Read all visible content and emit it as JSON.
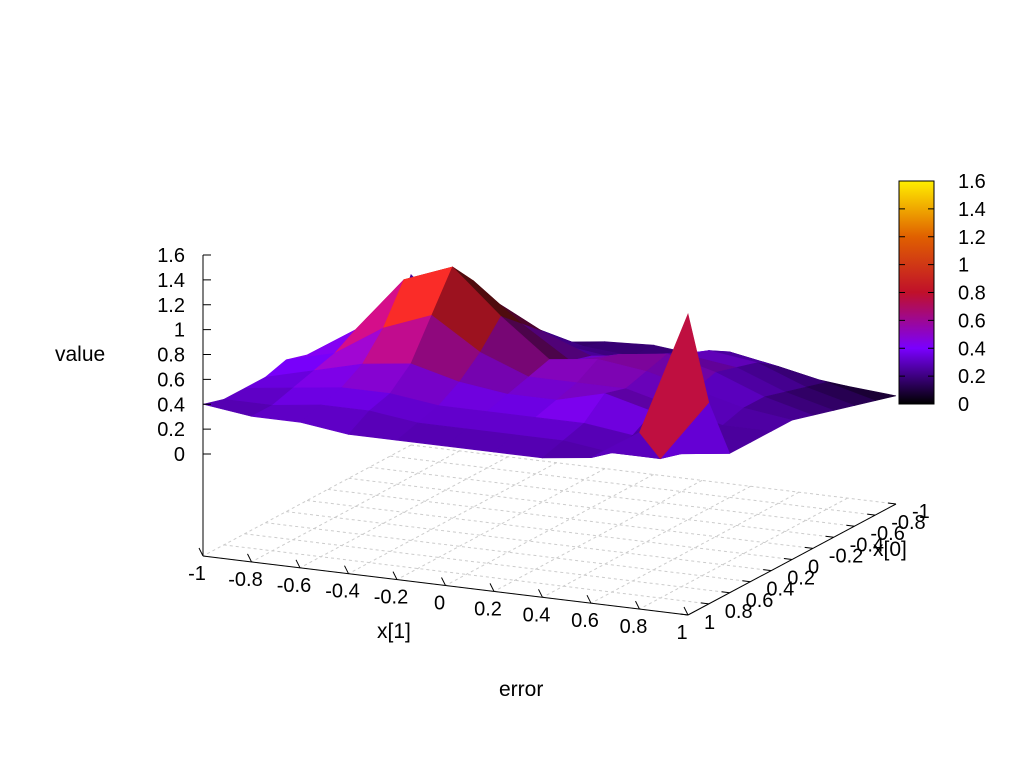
{
  "chart_data": {
    "type": "surface3d",
    "title": "error",
    "xlabel": "x[1]",
    "ylabel": "x[0]",
    "zlabel": "value",
    "xlim": [
      -1,
      1
    ],
    "ylim": [
      -1,
      1
    ],
    "zlim": [
      0,
      1.6
    ],
    "x_ticks": [
      "-1",
      "-0.8",
      "-0.6",
      "-0.4",
      "-0.2",
      "0",
      "0.2",
      "0.4",
      "0.6",
      "0.8",
      "1"
    ],
    "y_ticks": [
      "-1",
      "-0.8",
      "-0.6",
      "-0.4",
      "-0.2",
      "0",
      "0.2",
      "0.4",
      "0.6",
      "0.8",
      "1"
    ],
    "z_ticks": [
      "0",
      "0.2",
      "0.4",
      "0.6",
      "0.8",
      "1",
      "1.2",
      "1.4",
      "1.6"
    ],
    "colorbar": {
      "range": [
        0,
        1.6
      ],
      "ticks": [
        "0",
        "0.2",
        "0.4",
        "0.6",
        "0.8",
        "1",
        "1.2",
        "1.4",
        "1.6"
      ],
      "palette": [
        "#000000",
        "#7a00ff",
        "#c0102a",
        "#e06000",
        "#ffee00"
      ]
    },
    "grid": true,
    "grid_axis": [
      "-1",
      "-0.8",
      "-0.6",
      "-0.4",
      "-0.2",
      "0",
      "0.2",
      "0.4",
      "0.6",
      "0.8",
      "1"
    ],
    "z_grid": [
      [
        0.55,
        0.18,
        0.12,
        0.15,
        0.2,
        0.22,
        0.18,
        0.15,
        0.12,
        0.08,
        0.05
      ],
      [
        0.15,
        0.2,
        0.3,
        0.35,
        0.25,
        0.22,
        0.3,
        0.35,
        0.28,
        0.2,
        0.1
      ],
      [
        0.2,
        0.28,
        0.45,
        0.55,
        0.35,
        0.3,
        0.35,
        0.45,
        0.4,
        0.25,
        0.15
      ],
      [
        0.25,
        0.35,
        0.55,
        0.75,
        0.55,
        0.4,
        0.45,
        0.5,
        0.45,
        0.3,
        0.2
      ],
      [
        0.3,
        0.55,
        0.85,
        1.0,
        0.7,
        0.45,
        0.55,
        0.6,
        0.5,
        0.35,
        0.25
      ],
      [
        0.35,
        0.6,
        1.05,
        1.2,
        0.85,
        0.55,
        0.6,
        0.55,
        0.45,
        0.35,
        0.3
      ],
      [
        0.4,
        0.5,
        0.75,
        0.9,
        0.65,
        0.5,
        0.5,
        0.5,
        0.4,
        0.3,
        0.3
      ],
      [
        0.35,
        0.45,
        0.55,
        0.6,
        0.5,
        0.45,
        0.45,
        0.55,
        0.45,
        0.3,
        0.3
      ],
      [
        0.35,
        0.4,
        0.45,
        0.45,
        0.4,
        0.4,
        0.4,
        0.4,
        0.35,
        0.25,
        0.3
      ],
      [
        0.35,
        0.35,
        0.4,
        0.4,
        0.35,
        0.35,
        0.35,
        0.35,
        0.3,
        0.3,
        0.8
      ],
      [
        0.4,
        0.35,
        0.35,
        0.3,
        0.3,
        0.3,
        0.3,
        0.3,
        0.35,
        0.6,
        1.6
      ]
    ]
  }
}
